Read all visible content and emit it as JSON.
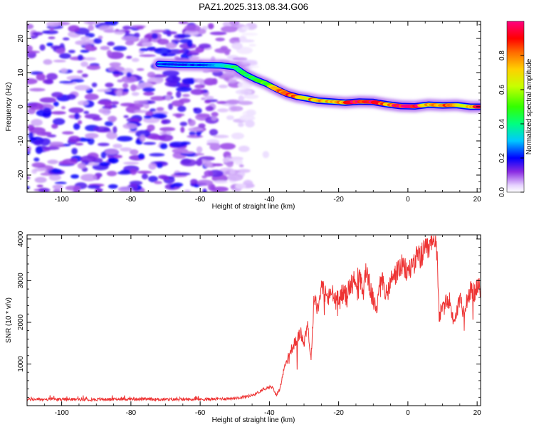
{
  "title": "PAZ1.2025.313.08.34.G06",
  "chart_data": [
    {
      "type": "heatmap",
      "name": "spectrogram",
      "xlabel": "Height of straight line (km)",
      "ylabel": "Frequency (Hz)",
      "xlim": [
        -110,
        21
      ],
      "ylim": [
        -25,
        25
      ],
      "xticks": [
        -100,
        -80,
        -60,
        -40,
        -20,
        0,
        20
      ],
      "yticks": [
        -20,
        -10,
        0,
        10,
        20
      ],
      "ridge": {
        "x": [
          -72,
          -66,
          -60,
          -54,
          -50,
          -47,
          -44,
          -41,
          -38,
          -35,
          -32,
          -29,
          -26,
          -22,
          -18,
          -14,
          -10,
          -6,
          -2,
          2,
          6,
          10,
          14,
          18,
          21
        ],
        "y": [
          12.5,
          12.3,
          12.2,
          12.1,
          11.6,
          9.5,
          8.0,
          6.8,
          5.2,
          3.8,
          2.9,
          2.4,
          1.8,
          1.5,
          1.2,
          1.5,
          1.4,
          0.7,
          0.2,
          0.1,
          0.6,
          0.4,
          0.5,
          0.0,
          0.0
        ],
        "amplitude": [
          0.2,
          0.2,
          0.22,
          0.35,
          0.42,
          0.45,
          0.45,
          0.5,
          0.7,
          0.95,
          0.8,
          0.7,
          0.8,
          0.7,
          0.75,
          0.95,
          0.9,
          0.8,
          0.95,
          1.0,
          0.7,
          0.8,
          0.7,
          0.75,
          0.9
        ]
      },
      "noise_region": {
        "x_range": [
          -110,
          -45
        ],
        "amplitude_range": [
          0.05,
          0.2
        ]
      }
    },
    {
      "type": "colorbar",
      "label": "Normalized spectral amplitude",
      "range": [
        0,
        1
      ],
      "ticks": [
        "0.0",
        "0.2",
        "0.4",
        "0.6",
        "0.8"
      ],
      "tick_values": [
        0,
        0.2,
        0.4,
        0.6,
        0.8
      ],
      "colormap_name": "hsv-rainbow"
    },
    {
      "type": "line",
      "name": "snr",
      "xlabel": "Height of straight line (km)",
      "ylabel": "SNR (10 * v/v)",
      "xlim": [
        -110,
        21
      ],
      "ylim": [
        0,
        4100
      ],
      "xticks": [
        -100,
        -80,
        -60,
        -40,
        -20,
        0,
        20
      ],
      "yticks": [
        1000,
        2000,
        3000,
        4000
      ],
      "color": "#ee3333",
      "series": [
        {
          "name": "SNR",
          "x": [
            -110,
            -100,
            -90,
            -80,
            -70,
            -60,
            -55,
            -50,
            -46,
            -44,
            -42,
            -40,
            -39,
            -38,
            -37,
            -36,
            -34,
            -32,
            -31,
            -30,
            -29,
            -28,
            -27,
            -26,
            -25,
            -23,
            -22,
            -21,
            -20,
            -18,
            -16,
            -14,
            -13,
            -12,
            -11,
            -10,
            -9,
            -8,
            -6,
            -5,
            -4,
            -2,
            0,
            2,
            4,
            6,
            7,
            8,
            8.5,
            9,
            10,
            11,
            12,
            13,
            14,
            15,
            16,
            17,
            18,
            19,
            20,
            21
          ],
          "y": [
            150,
            150,
            150,
            160,
            150,
            150,
            160,
            180,
            230,
            280,
            380,
            450,
            420,
            250,
            400,
            800,
            1300,
            1600,
            1750,
            1500,
            2000,
            1100,
            2700,
            2300,
            2900,
            2550,
            2750,
            2500,
            2650,
            2700,
            2950,
            3100,
            2700,
            3300,
            2850,
            2500,
            2300,
            3250,
            2600,
            3000,
            3100,
            3350,
            3200,
            3500,
            3600,
            3750,
            3850,
            3900,
            3700,
            2150,
            2300,
            2450,
            2550,
            2050,
            2200,
            2600,
            2300,
            2550,
            2750,
            2700,
            2800,
            2850
          ]
        }
      ]
    }
  ]
}
